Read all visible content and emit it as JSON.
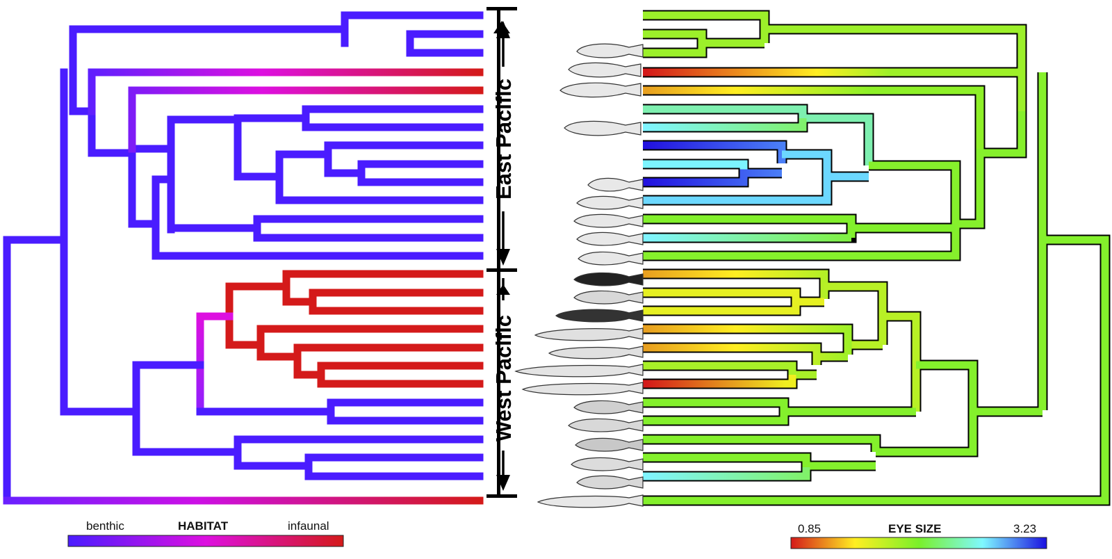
{
  "regions": {
    "east": "East Pacific",
    "west": "West Pacific"
  },
  "habitat_legend": {
    "title": "HABITAT",
    "left": "benthic",
    "right": "infaunal",
    "colors": [
      "#4a1cff",
      "#dd10e0",
      "#d41a1a"
    ]
  },
  "eye_legend": {
    "title": "EYE SIZE",
    "min": "0.85",
    "max": "3.23",
    "colors": [
      "#d41a1a",
      "#ffee22",
      "#7af02a",
      "#7ff8ff",
      "#1a10e0"
    ]
  },
  "colors": {
    "benthic": "#4a1cff",
    "infaunal": "#d41a1a",
    "mid": "#dd10e0",
    "green": "#7ff02a",
    "yellow": "#f0ee20",
    "cyan": "#7cf4ff",
    "blue": "#2212e0"
  },
  "tips": {
    "count": 27,
    "habitat": [
      "benthic",
      "benthic",
      "benthic",
      "infaunal",
      "infaunal",
      "benthic",
      "benthic",
      "benthic",
      "benthic",
      "benthic",
      "benthic",
      "benthic",
      "benthic",
      "benthic",
      "infaunal",
      "infaunal",
      "infaunal",
      "infaunal",
      "infaunal",
      "infaunal",
      "infaunal",
      "benthic",
      "benthic",
      "benthic",
      "benthic",
      "benthic",
      "infaunal"
    ],
    "eye_size": [
      "green",
      "green",
      "green",
      "red-yellow",
      "orange-yellow",
      "green",
      "cyan",
      "blue",
      "cyan",
      "blue",
      "green",
      "green",
      "cyan",
      "green",
      "orange-yellow",
      "yellow",
      "yellow",
      "orange-yellow",
      "orange-yellow",
      "green",
      "red-orange",
      "green",
      "green",
      "green",
      "cyan",
      "green",
      "green"
    ]
  }
}
